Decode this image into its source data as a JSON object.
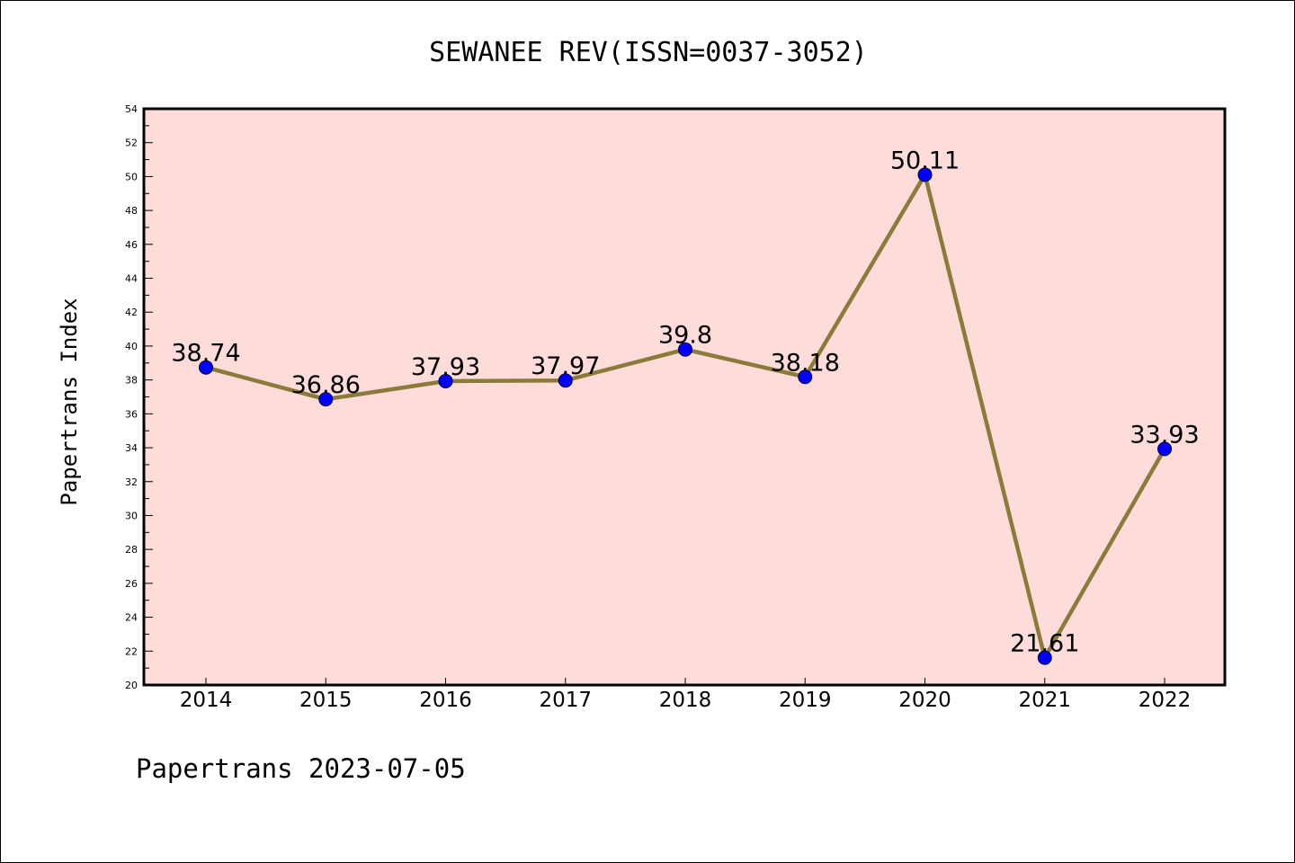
{
  "chart_data": {
    "type": "line",
    "title": "SEWANEE REV(ISSN=0037-3052)",
    "ylabel": "Papertrans Index",
    "xlabel": "",
    "categories": [
      "2014",
      "2015",
      "2016",
      "2017",
      "2018",
      "2019",
      "2020",
      "2021",
      "2022"
    ],
    "values": [
      38.74,
      36.86,
      37.93,
      37.97,
      39.8,
      38.18,
      50.11,
      21.61,
      33.93
    ],
    "data_labels": [
      "38.74",
      "36.86",
      "37.93",
      "37.97",
      "39.8",
      "38.18",
      "50.11",
      "21.61",
      "33.93"
    ],
    "ylim": [
      20,
      54
    ],
    "yticks": [
      "20",
      "22",
      "24",
      "26",
      "28",
      "30",
      "32",
      "34",
      "36",
      "38",
      "40",
      "42",
      "44",
      "46",
      "48",
      "50",
      "52",
      "54"
    ],
    "grid": false,
    "line_color": "#8B7B3A",
    "marker_color": "#0000FF",
    "plot_background": "#FDDCDA"
  },
  "footer": "Papertrans 2023-07-05"
}
